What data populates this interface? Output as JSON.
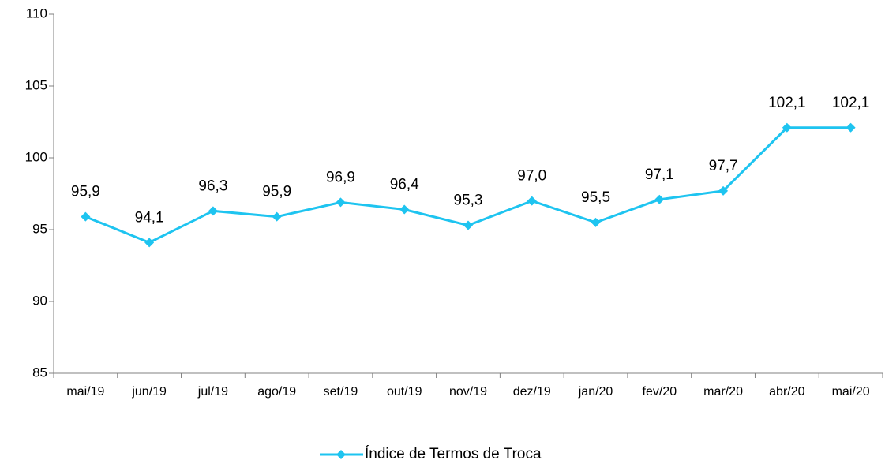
{
  "chart_data": {
    "type": "line",
    "categories": [
      "mai/19",
      "jun/19",
      "jul/19",
      "ago/19",
      "set/19",
      "out/19",
      "nov/19",
      "dez/19",
      "jan/20",
      "fev/20",
      "mar/20",
      "abr/20",
      "mai/20"
    ],
    "series": [
      {
        "name": "Índice de Termos de Troca",
        "color": "#1ec4f0",
        "values": [
          95.9,
          94.1,
          96.3,
          95.9,
          96.9,
          96.4,
          95.3,
          97.0,
          95.5,
          97.1,
          97.7,
          102.1,
          102.1
        ],
        "value_labels": [
          "95,9",
          "94,1",
          "96,3",
          "95,9",
          "96,9",
          "96,4",
          "95,3",
          "97,0",
          "95,5",
          "97,1",
          "97,7",
          "102,1",
          "102,1"
        ]
      }
    ],
    "ylim": [
      85,
      110
    ],
    "yticks": [
      85,
      90,
      95,
      100,
      105,
      110
    ],
    "grid": false,
    "legend": "bottom"
  }
}
